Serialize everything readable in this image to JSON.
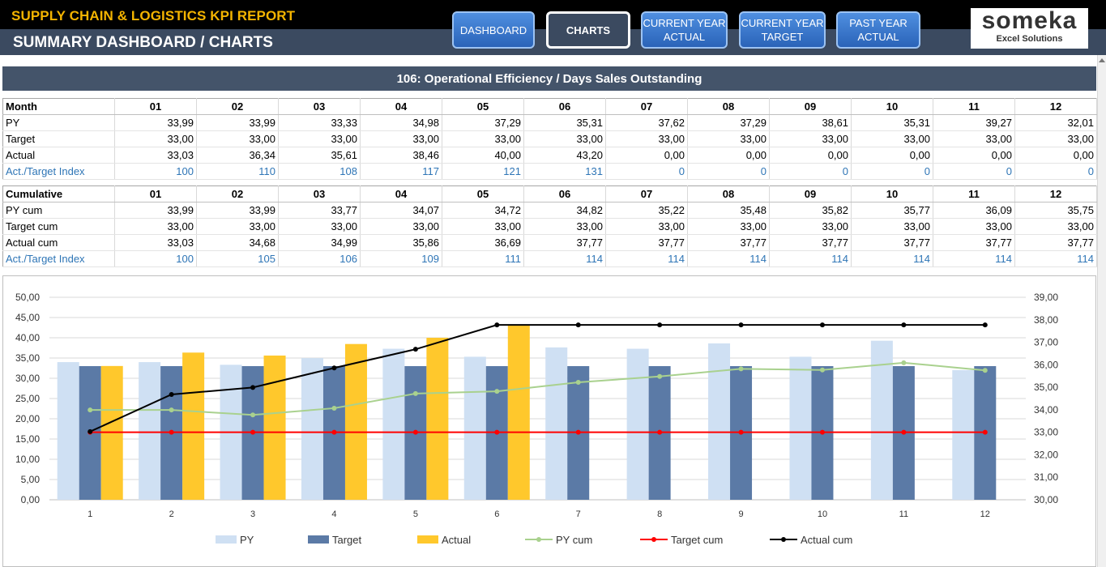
{
  "header": {
    "title": "SUPPLY CHAIN & LOGISTICS KPI REPORT",
    "subtitle": "SUMMARY DASHBOARD / CHARTS",
    "nav": [
      {
        "label": "DASHBOARD"
      },
      {
        "label": "CHARTS"
      },
      {
        "label": "CURRENT YEAR ACTUAL"
      },
      {
        "label": "CURRENT YEAR TARGET"
      },
      {
        "label": "PAST YEAR ACTUAL"
      }
    ],
    "logo_main": "someka",
    "logo_sub": "Excel Solutions"
  },
  "section_title": "106: Operational Efficiency / Days Sales Outstanding",
  "monthly_table": {
    "header_label": "Month",
    "months": [
      "01",
      "02",
      "03",
      "04",
      "05",
      "06",
      "07",
      "08",
      "09",
      "10",
      "11",
      "12"
    ],
    "rows": [
      {
        "label": "PY",
        "values": [
          "33,99",
          "33,99",
          "33,33",
          "34,98",
          "37,29",
          "35,31",
          "37,62",
          "37,29",
          "38,61",
          "35,31",
          "39,27",
          "32,01"
        ]
      },
      {
        "label": "Target",
        "values": [
          "33,00",
          "33,00",
          "33,00",
          "33,00",
          "33,00",
          "33,00",
          "33,00",
          "33,00",
          "33,00",
          "33,00",
          "33,00",
          "33,00"
        ]
      },
      {
        "label": "Actual",
        "values": [
          "33,03",
          "36,34",
          "35,61",
          "38,46",
          "40,00",
          "43,20",
          "0,00",
          "0,00",
          "0,00",
          "0,00",
          "0,00",
          "0,00"
        ]
      },
      {
        "label": "Act./Target Index",
        "values": [
          "100",
          "110",
          "108",
          "117",
          "121",
          "131",
          "0",
          "0",
          "0",
          "0",
          "0",
          "0"
        ]
      }
    ]
  },
  "cumulative_table": {
    "header_label": "Cumulative",
    "months": [
      "01",
      "02",
      "03",
      "04",
      "05",
      "06",
      "07",
      "08",
      "09",
      "10",
      "11",
      "12"
    ],
    "rows": [
      {
        "label": "PY cum",
        "values": [
          "33,99",
          "33,99",
          "33,77",
          "34,07",
          "34,72",
          "34,82",
          "35,22",
          "35,48",
          "35,82",
          "35,77",
          "36,09",
          "35,75"
        ]
      },
      {
        "label": "Target cum",
        "values": [
          "33,00",
          "33,00",
          "33,00",
          "33,00",
          "33,00",
          "33,00",
          "33,00",
          "33,00",
          "33,00",
          "33,00",
          "33,00",
          "33,00"
        ]
      },
      {
        "label": "Actual cum",
        "values": [
          "33,03",
          "34,68",
          "34,99",
          "35,86",
          "36,69",
          "37,77",
          "37,77",
          "37,77",
          "37,77",
          "37,77",
          "37,77",
          "37,77"
        ]
      },
      {
        "label": "Act./Target Index",
        "values": [
          "100",
          "105",
          "106",
          "109",
          "111",
          "114",
          "114",
          "114",
          "114",
          "114",
          "114",
          "114"
        ]
      }
    ]
  },
  "chart_data": {
    "type": "bar",
    "categories": [
      "1",
      "2",
      "3",
      "4",
      "5",
      "6",
      "7",
      "8",
      "9",
      "10",
      "11",
      "12"
    ],
    "series": [
      {
        "name": "PY",
        "type": "bar",
        "axis": "left",
        "color": "#cfe0f3",
        "values": [
          33.99,
          33.99,
          33.33,
          34.98,
          37.29,
          35.31,
          37.62,
          37.29,
          38.61,
          35.31,
          39.27,
          32.01
        ]
      },
      {
        "name": "Target",
        "type": "bar",
        "axis": "left",
        "color": "#5b7aa6",
        "values": [
          33,
          33,
          33,
          33,
          33,
          33,
          33,
          33,
          33,
          33,
          33,
          33
        ]
      },
      {
        "name": "Actual",
        "type": "bar",
        "axis": "left",
        "color": "#ffc82c",
        "values": [
          33.03,
          36.34,
          35.61,
          38.46,
          40.0,
          43.2,
          0,
          0,
          0,
          0,
          0,
          0
        ]
      },
      {
        "name": "PY cum",
        "type": "line",
        "axis": "right",
        "color": "#a9d18e",
        "values": [
          33.99,
          33.99,
          33.77,
          34.07,
          34.72,
          34.82,
          35.22,
          35.48,
          35.82,
          35.77,
          36.09,
          35.75
        ]
      },
      {
        "name": "Target cum",
        "type": "line",
        "axis": "right",
        "color": "#ff0000",
        "values": [
          33,
          33,
          33,
          33,
          33,
          33,
          33,
          33,
          33,
          33,
          33,
          33
        ]
      },
      {
        "name": "Actual cum",
        "type": "line",
        "axis": "right",
        "color": "#000000",
        "values": [
          33.03,
          34.68,
          34.99,
          35.86,
          36.69,
          37.77,
          37.77,
          37.77,
          37.77,
          37.77,
          37.77,
          37.77
        ]
      }
    ],
    "ylim_left": [
      0,
      50
    ],
    "yticks_left": [
      "0,00",
      "5,00",
      "10,00",
      "15,00",
      "20,00",
      "25,00",
      "30,00",
      "35,00",
      "40,00",
      "45,00",
      "50,00"
    ],
    "ylim_right": [
      30,
      39
    ],
    "yticks_right": [
      "30,00",
      "31,00",
      "32,00",
      "33,00",
      "34,00",
      "35,00",
      "36,00",
      "37,00",
      "38,00",
      "39,00"
    ],
    "grid": true,
    "legend_position": "bottom"
  }
}
